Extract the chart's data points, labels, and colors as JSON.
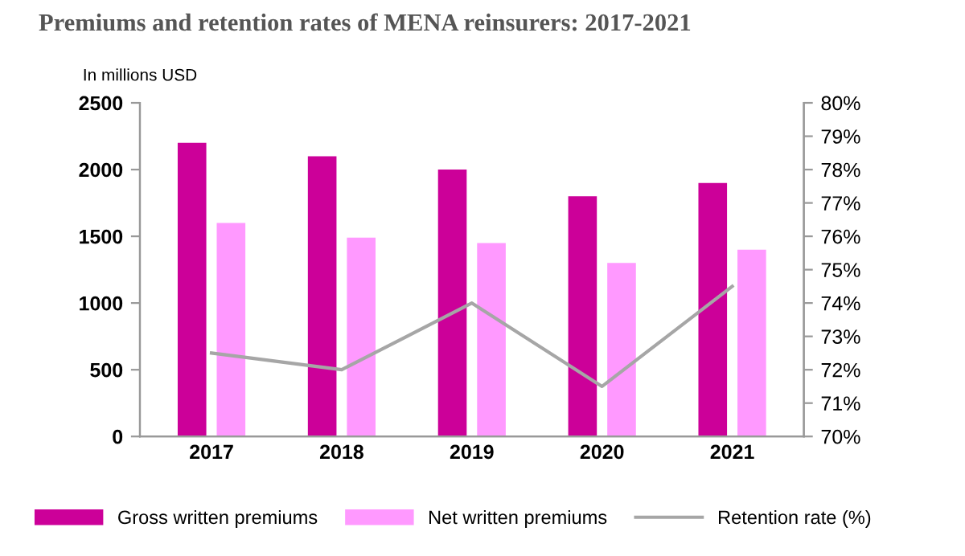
{
  "chart_data": {
    "type": "bar",
    "title": "Premiums and retention rates of MENA reinsurers: 2017-2021",
    "ylabel": "In millions USD",
    "categories": [
      "2017",
      "2018",
      "2019",
      "2020",
      "2021"
    ],
    "series": [
      {
        "name": "Gross written premiums",
        "color": "#cc0099",
        "values": [
          2200,
          2100,
          2000,
          1800,
          1900
        ]
      },
      {
        "name": "Net written premiums",
        "color": "#ff99ff",
        "values": [
          1600,
          1490,
          1450,
          1300,
          1400
        ]
      },
      {
        "name": "Retention rate (%)",
        "type": "line",
        "axis": "y2",
        "color": "#a6a6a6",
        "values": [
          72.5,
          72.0,
          74.0,
          71.5,
          74.5
        ]
      }
    ],
    "ylim": [
      0,
      2500
    ],
    "yticks": [
      0,
      500,
      1000,
      1500,
      2000,
      2500
    ],
    "y2lim": [
      70,
      80
    ],
    "y2ticks": [
      {
        "value": 70,
        "label": "70%"
      },
      {
        "value": 71,
        "label": "71%"
      },
      {
        "value": 72,
        "label": "72%"
      },
      {
        "value": 73,
        "label": "73%"
      },
      {
        "value": 74,
        "label": "74%"
      },
      {
        "value": 75,
        "label": "75%"
      },
      {
        "value": 76,
        "label": "76%"
      },
      {
        "value": 77,
        "label": "77%"
      },
      {
        "value": 78,
        "label": "78%"
      },
      {
        "value": 79,
        "label": "79%"
      },
      {
        "value": 80,
        "label": "80%"
      }
    ],
    "grid": false,
    "legend": "bottom"
  }
}
